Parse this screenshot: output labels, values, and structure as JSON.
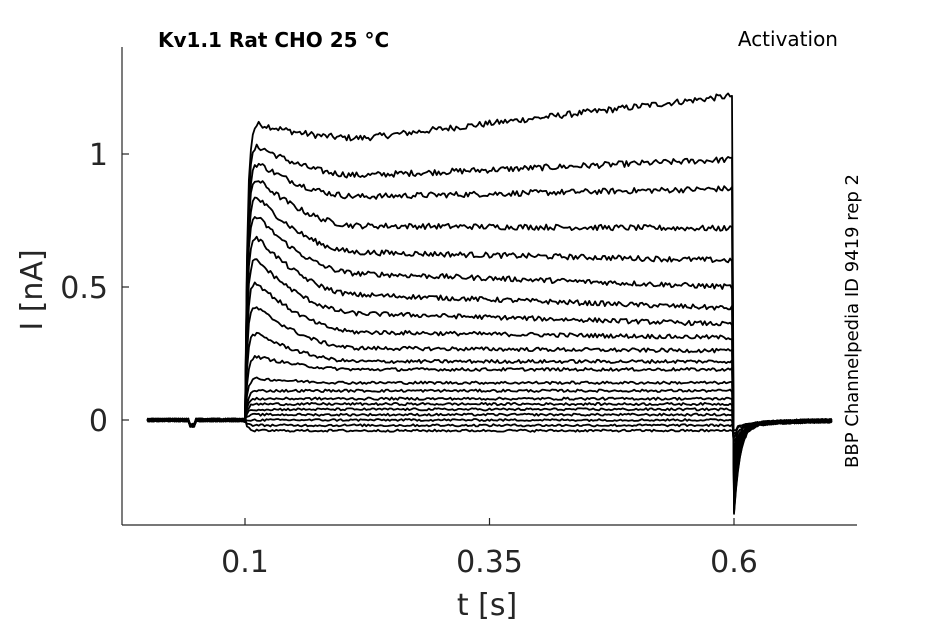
{
  "header": {
    "title": "Kv1.1  Rat  CHO  25 °C",
    "protocol": "Activation"
  },
  "side_label": "BBP Channelpedia ID 9419 rep 2",
  "colors": {
    "trace": "#000000",
    "axis": "#262626",
    "background": "#ffffff"
  },
  "chart_data": {
    "type": "line",
    "xlabel": "t [s]",
    "ylabel": "I [nA]",
    "xlim": [
      -0.0,
      0.75
    ],
    "ylim": [
      -0.4,
      1.4
    ],
    "xticks": [
      0.1,
      0.35,
      0.6
    ],
    "xtick_labels": [
      "0.1",
      "0.35",
      "0.6"
    ],
    "yticks": [
      0,
      0.5,
      1
    ],
    "ytick_labels": [
      "0",
      "0.5",
      "1"
    ],
    "grid": false,
    "legend": "none",
    "step_onset_s": 0.1,
    "step_offset_s": 0.6,
    "sweeps": [
      {
        "peak": 1.13,
        "mid": 1.06,
        "end": 1.22
      },
      {
        "peak": 1.06,
        "mid": 0.92,
        "end": 0.98
      },
      {
        "peak": 1.0,
        "mid": 0.84,
        "end": 0.87
      },
      {
        "peak": 0.95,
        "mid": 0.73,
        "end": 0.72
      },
      {
        "peak": 0.89,
        "mid": 0.63,
        "end": 0.6
      },
      {
        "peak": 0.82,
        "mid": 0.55,
        "end": 0.5
      },
      {
        "peak": 0.74,
        "mid": 0.47,
        "end": 0.42
      },
      {
        "peak": 0.65,
        "mid": 0.4,
        "end": 0.36
      },
      {
        "peak": 0.56,
        "mid": 0.33,
        "end": 0.31
      },
      {
        "peak": 0.46,
        "mid": 0.27,
        "end": 0.26
      },
      {
        "peak": 0.35,
        "mid": 0.22,
        "end": 0.22
      },
      {
        "peak": 0.25,
        "mid": 0.19,
        "end": 0.19
      },
      {
        "peak": 0.16,
        "mid": 0.14,
        "end": 0.14
      },
      {
        "peak": 0.11,
        "mid": 0.11,
        "end": 0.11
      },
      {
        "peak": 0.08,
        "mid": 0.08,
        "end": 0.08
      },
      {
        "peak": 0.06,
        "mid": 0.06,
        "end": 0.06
      },
      {
        "peak": 0.04,
        "mid": 0.04,
        "end": 0.04
      },
      {
        "peak": 0.02,
        "mid": 0.02,
        "end": 0.02
      },
      {
        "peak": 0.0,
        "mid": 0.0,
        "end": 0.0
      },
      {
        "peak": -0.02,
        "mid": -0.02,
        "end": -0.02
      },
      {
        "peak": -0.04,
        "mid": -0.04,
        "end": -0.04
      }
    ],
    "tail_min": -0.34
  }
}
